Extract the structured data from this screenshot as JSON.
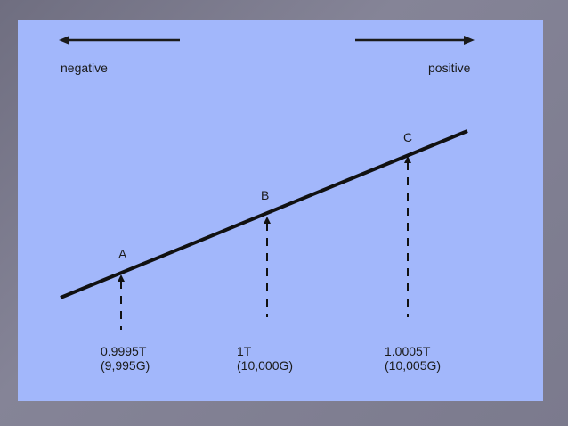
{
  "diagram": {
    "direction_left": "negative",
    "direction_right": "positive",
    "points": [
      {
        "name": "A",
        "field_tesla": "0.9995T",
        "field_gauss": "(9,995G)"
      },
      {
        "name": "B",
        "field_tesla": "1T",
        "field_gauss": "(10,000G)"
      },
      {
        "name": "C",
        "field_tesla": "1.0005T",
        "field_gauss": "(10,005G)"
      }
    ],
    "colors": {
      "panel": "#a2b7fb",
      "ink": "#1a1a1a",
      "frame": "#7b7a8d"
    }
  }
}
